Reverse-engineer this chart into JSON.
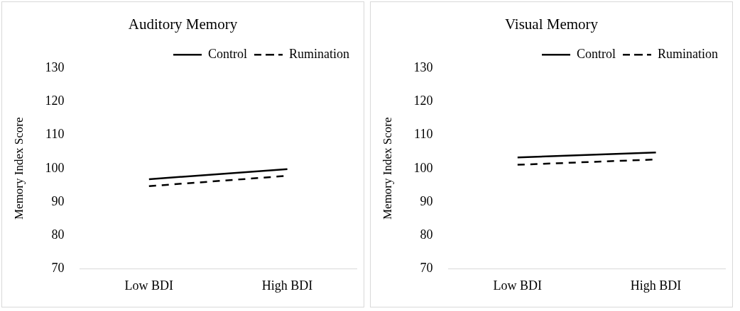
{
  "chart_data": [
    {
      "type": "line",
      "title": "Auditory Memory",
      "ylabel": "Memory Index Score",
      "categories": [
        "Low BDI",
        "High BDI"
      ],
      "series": [
        {
          "name": "Control",
          "color": "#000000",
          "line_style": "solid",
          "values": [
            96.8,
            99.8
          ]
        },
        {
          "name": "Rumination",
          "color": "#000000",
          "line_style": "dashed",
          "values": [
            94.7,
            97.8
          ]
        }
      ],
      "ylim": [
        70,
        130
      ],
      "yticks": [
        70,
        80,
        90,
        100,
        110,
        120,
        130
      ],
      "grid": false,
      "legend": "top right",
      "marker": "none"
    },
    {
      "type": "line",
      "title": "Visual Memory",
      "ylabel": "Memory Index Score",
      "categories": [
        "Low BDI",
        "High BDI"
      ],
      "series": [
        {
          "name": "Control",
          "color": "#000000",
          "line_style": "solid",
          "values": [
            103.3,
            104.8
          ]
        },
        {
          "name": "Rumination",
          "color": "#000000",
          "line_style": "dashed",
          "values": [
            101.1,
            102.7
          ]
        }
      ],
      "ylim": [
        70,
        130
      ],
      "yticks": [
        70,
        80,
        90,
        100,
        110,
        120,
        130
      ],
      "grid": false,
      "legend": "top right",
      "marker": "none"
    }
  ]
}
